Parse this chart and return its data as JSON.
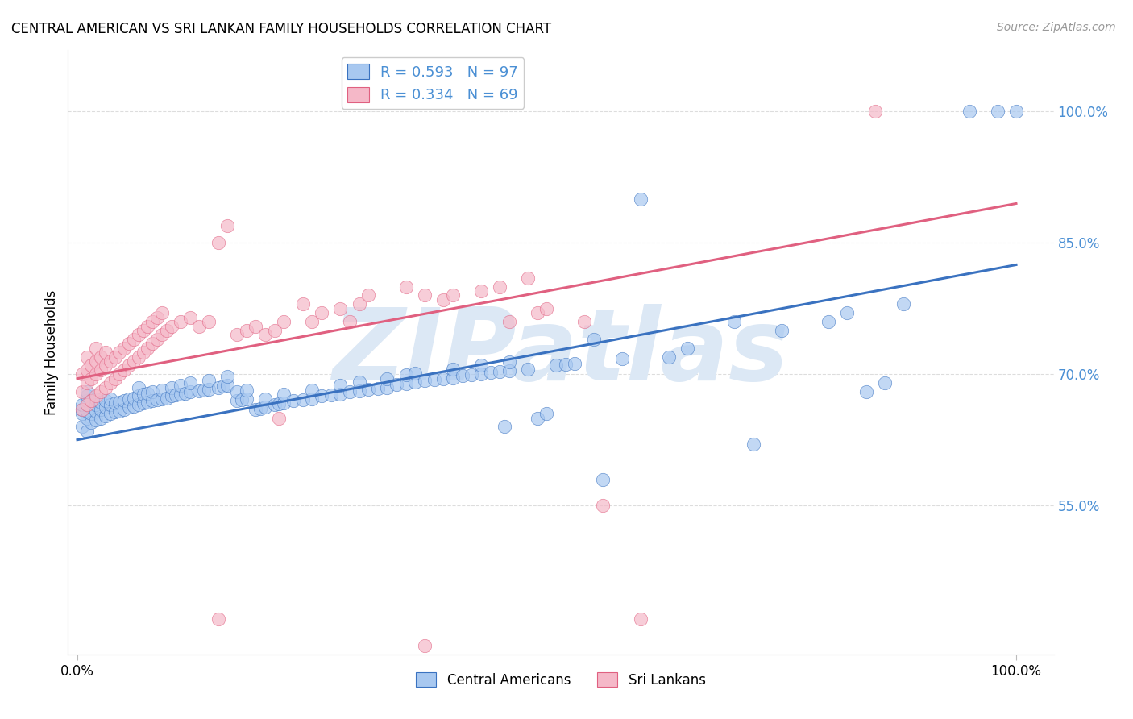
{
  "title": "CENTRAL AMERICAN VS SRI LANKAN FAMILY HOUSEHOLDS CORRELATION CHART",
  "source": "Source: ZipAtlas.com",
  "ylabel": "Family Households",
  "ytick_labels": [
    "55.0%",
    "70.0%",
    "85.0%",
    "100.0%"
  ],
  "ytick_values": [
    0.55,
    0.7,
    0.85,
    1.0
  ],
  "xlim": [
    -0.01,
    1.04
  ],
  "ylim": [
    0.38,
    1.07
  ],
  "blue_color": "#a8c8f0",
  "pink_color": "#f5b8c8",
  "blue_line_color": "#3a72c0",
  "pink_line_color": "#e06080",
  "watermark": "ZIPatlas",
  "watermark_color": "#dce8f5",
  "background_color": "#ffffff",
  "grid_color": "#dddddd",
  "blue_line_x0": 0.0,
  "blue_line_y0": 0.625,
  "blue_line_x1": 1.0,
  "blue_line_y1": 0.825,
  "pink_line_x0": 0.0,
  "pink_line_y0": 0.695,
  "pink_line_x1": 1.0,
  "pink_line_y1": 0.895,
  "blue_scatter": [
    [
      0.005,
      0.64
    ],
    [
      0.005,
      0.655
    ],
    [
      0.005,
      0.66
    ],
    [
      0.005,
      0.665
    ],
    [
      0.01,
      0.635
    ],
    [
      0.01,
      0.65
    ],
    [
      0.01,
      0.658
    ],
    [
      0.01,
      0.665
    ],
    [
      0.01,
      0.67
    ],
    [
      0.01,
      0.675
    ],
    [
      0.01,
      0.68
    ],
    [
      0.015,
      0.645
    ],
    [
      0.015,
      0.655
    ],
    [
      0.015,
      0.662
    ],
    [
      0.015,
      0.67
    ],
    [
      0.02,
      0.648
    ],
    [
      0.02,
      0.658
    ],
    [
      0.02,
      0.665
    ],
    [
      0.02,
      0.672
    ],
    [
      0.025,
      0.65
    ],
    [
      0.025,
      0.66
    ],
    [
      0.025,
      0.668
    ],
    [
      0.03,
      0.652
    ],
    [
      0.03,
      0.662
    ],
    [
      0.03,
      0.67
    ],
    [
      0.035,
      0.655
    ],
    [
      0.035,
      0.665
    ],
    [
      0.035,
      0.672
    ],
    [
      0.04,
      0.657
    ],
    [
      0.04,
      0.667
    ],
    [
      0.045,
      0.658
    ],
    [
      0.045,
      0.668
    ],
    [
      0.05,
      0.66
    ],
    [
      0.05,
      0.67
    ],
    [
      0.055,
      0.662
    ],
    [
      0.055,
      0.672
    ],
    [
      0.06,
      0.663
    ],
    [
      0.06,
      0.673
    ],
    [
      0.065,
      0.665
    ],
    [
      0.065,
      0.675
    ],
    [
      0.065,
      0.685
    ],
    [
      0.07,
      0.667
    ],
    [
      0.07,
      0.677
    ],
    [
      0.075,
      0.668
    ],
    [
      0.075,
      0.678
    ],
    [
      0.08,
      0.67
    ],
    [
      0.08,
      0.68
    ],
    [
      0.085,
      0.671
    ],
    [
      0.09,
      0.672
    ],
    [
      0.09,
      0.682
    ],
    [
      0.095,
      0.673
    ],
    [
      0.1,
      0.675
    ],
    [
      0.1,
      0.685
    ],
    [
      0.105,
      0.676
    ],
    [
      0.11,
      0.677
    ],
    [
      0.11,
      0.687
    ],
    [
      0.115,
      0.678
    ],
    [
      0.12,
      0.68
    ],
    [
      0.12,
      0.69
    ],
    [
      0.13,
      0.681
    ],
    [
      0.135,
      0.682
    ],
    [
      0.14,
      0.683
    ],
    [
      0.14,
      0.693
    ],
    [
      0.15,
      0.685
    ],
    [
      0.155,
      0.686
    ],
    [
      0.16,
      0.687
    ],
    [
      0.16,
      0.697
    ],
    [
      0.17,
      0.67
    ],
    [
      0.17,
      0.68
    ],
    [
      0.175,
      0.671
    ],
    [
      0.18,
      0.672
    ],
    [
      0.18,
      0.682
    ],
    [
      0.19,
      0.66
    ],
    [
      0.195,
      0.661
    ],
    [
      0.2,
      0.662
    ],
    [
      0.2,
      0.672
    ],
    [
      0.21,
      0.665
    ],
    [
      0.215,
      0.666
    ],
    [
      0.22,
      0.667
    ],
    [
      0.22,
      0.677
    ],
    [
      0.23,
      0.67
    ],
    [
      0.24,
      0.671
    ],
    [
      0.25,
      0.672
    ],
    [
      0.25,
      0.682
    ],
    [
      0.26,
      0.675
    ],
    [
      0.27,
      0.676
    ],
    [
      0.28,
      0.677
    ],
    [
      0.28,
      0.687
    ],
    [
      0.29,
      0.68
    ],
    [
      0.3,
      0.681
    ],
    [
      0.3,
      0.691
    ],
    [
      0.31,
      0.683
    ],
    [
      0.32,
      0.684
    ],
    [
      0.33,
      0.685
    ],
    [
      0.33,
      0.695
    ],
    [
      0.34,
      0.688
    ],
    [
      0.35,
      0.689
    ],
    [
      0.35,
      0.699
    ],
    [
      0.36,
      0.691
    ],
    [
      0.36,
      0.701
    ],
    [
      0.37,
      0.693
    ],
    [
      0.38,
      0.694
    ],
    [
      0.39,
      0.695
    ],
    [
      0.4,
      0.696
    ],
    [
      0.4,
      0.706
    ],
    [
      0.41,
      0.698
    ],
    [
      0.42,
      0.699
    ],
    [
      0.43,
      0.7
    ],
    [
      0.43,
      0.71
    ],
    [
      0.44,
      0.702
    ],
    [
      0.45,
      0.703
    ],
    [
      0.455,
      0.64
    ],
    [
      0.46,
      0.704
    ],
    [
      0.46,
      0.714
    ],
    [
      0.48,
      0.706
    ],
    [
      0.49,
      0.65
    ],
    [
      0.5,
      0.655
    ],
    [
      0.51,
      0.71
    ],
    [
      0.52,
      0.711
    ],
    [
      0.53,
      0.712
    ],
    [
      0.55,
      0.74
    ],
    [
      0.56,
      0.58
    ],
    [
      0.58,
      0.718
    ],
    [
      0.6,
      0.9
    ],
    [
      0.63,
      0.72
    ],
    [
      0.65,
      0.73
    ],
    [
      0.7,
      0.76
    ],
    [
      0.72,
      0.62
    ],
    [
      0.75,
      0.75
    ],
    [
      0.8,
      0.76
    ],
    [
      0.82,
      0.77
    ],
    [
      0.84,
      0.68
    ],
    [
      0.86,
      0.69
    ],
    [
      0.88,
      0.78
    ],
    [
      0.95,
      1.0
    ],
    [
      0.98,
      1.0
    ],
    [
      1.0,
      1.0
    ]
  ],
  "pink_scatter": [
    [
      0.005,
      0.66
    ],
    [
      0.005,
      0.68
    ],
    [
      0.005,
      0.7
    ],
    [
      0.01,
      0.665
    ],
    [
      0.01,
      0.69
    ],
    [
      0.01,
      0.705
    ],
    [
      0.01,
      0.72
    ],
    [
      0.015,
      0.67
    ],
    [
      0.015,
      0.695
    ],
    [
      0.015,
      0.71
    ],
    [
      0.02,
      0.675
    ],
    [
      0.02,
      0.7
    ],
    [
      0.02,
      0.715
    ],
    [
      0.02,
      0.73
    ],
    [
      0.025,
      0.68
    ],
    [
      0.025,
      0.705
    ],
    [
      0.025,
      0.72
    ],
    [
      0.03,
      0.685
    ],
    [
      0.03,
      0.71
    ],
    [
      0.03,
      0.725
    ],
    [
      0.035,
      0.69
    ],
    [
      0.035,
      0.715
    ],
    [
      0.04,
      0.695
    ],
    [
      0.04,
      0.72
    ],
    [
      0.045,
      0.7
    ],
    [
      0.045,
      0.725
    ],
    [
      0.05,
      0.705
    ],
    [
      0.05,
      0.73
    ],
    [
      0.055,
      0.71
    ],
    [
      0.055,
      0.735
    ],
    [
      0.06,
      0.715
    ],
    [
      0.06,
      0.74
    ],
    [
      0.065,
      0.72
    ],
    [
      0.065,
      0.745
    ],
    [
      0.07,
      0.725
    ],
    [
      0.07,
      0.75
    ],
    [
      0.075,
      0.73
    ],
    [
      0.075,
      0.755
    ],
    [
      0.08,
      0.735
    ],
    [
      0.08,
      0.76
    ],
    [
      0.085,
      0.74
    ],
    [
      0.085,
      0.765
    ],
    [
      0.09,
      0.745
    ],
    [
      0.09,
      0.77
    ],
    [
      0.095,
      0.75
    ],
    [
      0.1,
      0.755
    ],
    [
      0.11,
      0.76
    ],
    [
      0.12,
      0.765
    ],
    [
      0.13,
      0.755
    ],
    [
      0.14,
      0.76
    ],
    [
      0.15,
      0.85
    ],
    [
      0.16,
      0.87
    ],
    [
      0.17,
      0.745
    ],
    [
      0.18,
      0.75
    ],
    [
      0.19,
      0.755
    ],
    [
      0.2,
      0.745
    ],
    [
      0.21,
      0.75
    ],
    [
      0.215,
      0.65
    ],
    [
      0.22,
      0.76
    ],
    [
      0.24,
      0.78
    ],
    [
      0.25,
      0.76
    ],
    [
      0.26,
      0.77
    ],
    [
      0.28,
      0.775
    ],
    [
      0.29,
      0.76
    ],
    [
      0.3,
      0.78
    ],
    [
      0.31,
      0.79
    ],
    [
      0.35,
      0.8
    ],
    [
      0.37,
      0.79
    ],
    [
      0.39,
      0.785
    ],
    [
      0.4,
      0.79
    ],
    [
      0.43,
      0.795
    ],
    [
      0.45,
      0.8
    ],
    [
      0.46,
      0.76
    ],
    [
      0.48,
      0.81
    ],
    [
      0.49,
      0.77
    ],
    [
      0.5,
      0.775
    ],
    [
      0.54,
      0.76
    ],
    [
      0.56,
      0.55
    ],
    [
      0.6,
      0.42
    ],
    [
      0.15,
      0.42
    ],
    [
      0.37,
      0.39
    ],
    [
      0.85,
      1.0
    ]
  ]
}
